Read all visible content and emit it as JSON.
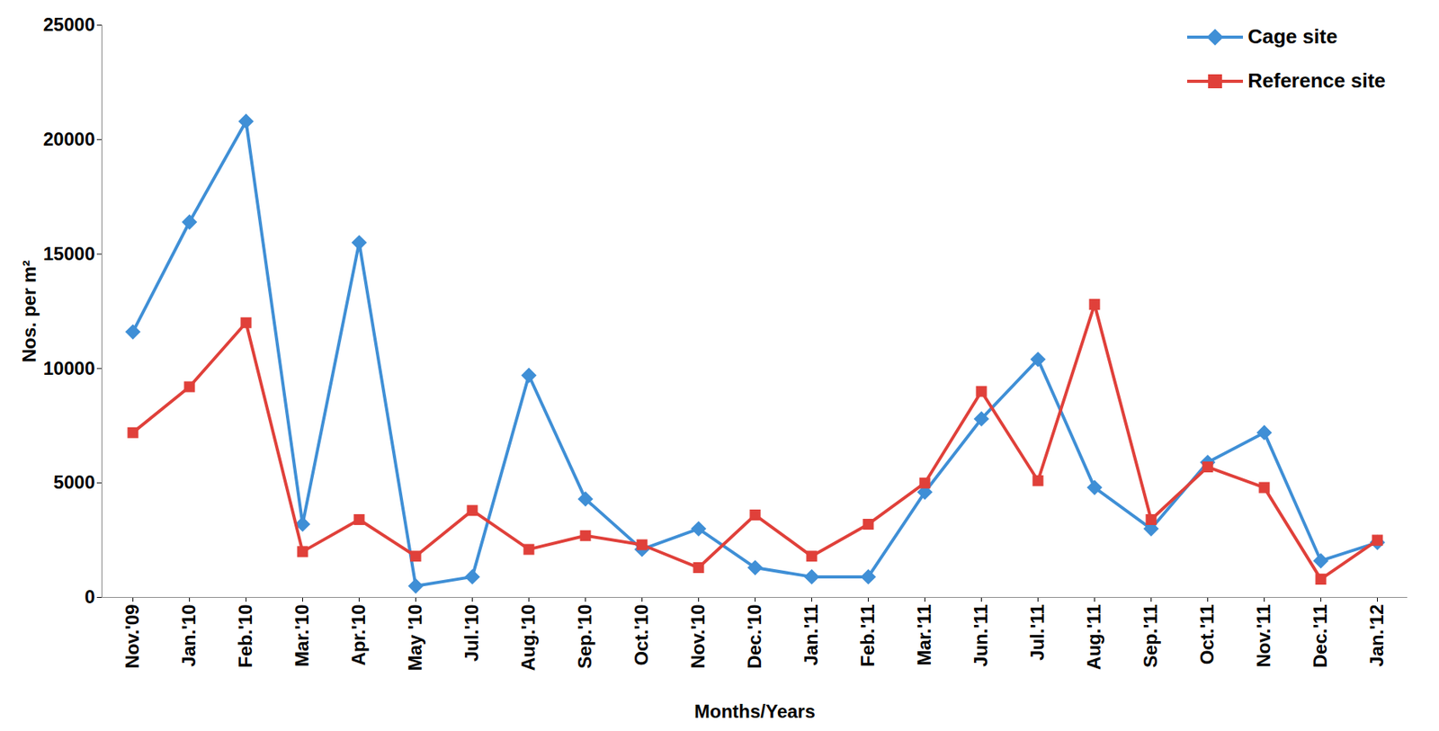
{
  "chart_data": {
    "type": "line",
    "x_label": "Months/Years",
    "y_label": "Nos. per m²",
    "categories": [
      "Nov.'09",
      "Jan.'10",
      "Feb.'10",
      "Mar.'10",
      "Apr.'10",
      "May '10",
      "Jul.'10",
      "Aug.'10",
      "Sep.'10",
      "Oct.'10",
      "Nov.'10",
      "Dec.'10",
      "Jan.'11",
      "Feb.'11",
      "Mar.'11",
      "Jun.'11",
      "Jul.'11",
      "Aug.'11",
      "Sep.'11",
      "Oct.'11",
      "Nov.'11",
      "Dec.'11",
      "Jan.'12"
    ],
    "series": [
      {
        "name": "Cage site",
        "color": "#3f8fd6",
        "marker": "diamond",
        "values": [
          11600,
          16400,
          20800,
          3200,
          15500,
          500,
          900,
          9700,
          4300,
          2100,
          3000,
          1300,
          900,
          900,
          4600,
          7800,
          10400,
          4800,
          3000,
          5900,
          7200,
          1600,
          2400
        ]
      },
      {
        "name": "Reference site",
        "color": "#e0403a",
        "marker": "square",
        "values": [
          7200,
          9200,
          12000,
          2000,
          3400,
          1800,
          3800,
          2100,
          2700,
          2300,
          1300,
          3600,
          1800,
          3200,
          5000,
          9000,
          5100,
          12800,
          3400,
          5700,
          4800,
          800,
          2500
        ]
      }
    ],
    "ylim": [
      0,
      25000
    ],
    "yticks": [
      0,
      5000,
      10000,
      15000,
      20000,
      25000
    ],
    "grid": false,
    "legend": "top-right"
  }
}
